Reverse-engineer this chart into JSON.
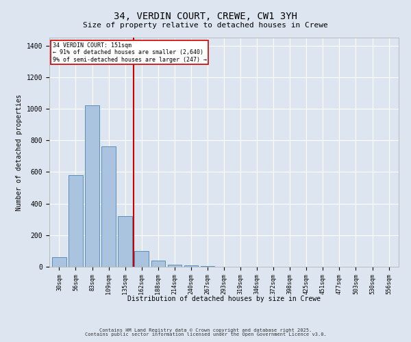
{
  "title_line1": "34, VERDIN COURT, CREWE, CW1 3YH",
  "title_line2": "Size of property relative to detached houses in Crewe",
  "xlabel": "Distribution of detached houses by size in Crewe",
  "ylabel": "Number of detached properties",
  "annotation_line1": "34 VERDIN COURT: 151sqm",
  "annotation_line2": "← 91% of detached houses are smaller (2,640)",
  "annotation_line3": "9% of semi-detached houses are larger (247) →",
  "footer_line1": "Contains HM Land Registry data © Crown copyright and database right 2025.",
  "footer_line2": "Contains public sector information licensed under the Open Government Licence v3.0.",
  "categories": [
    "30sqm",
    "56sqm",
    "83sqm",
    "109sqm",
    "135sqm",
    "162sqm",
    "188sqm",
    "214sqm",
    "240sqm",
    "267sqm",
    "293sqm",
    "319sqm",
    "346sqm",
    "372sqm",
    "398sqm",
    "425sqm",
    "451sqm",
    "477sqm",
    "503sqm",
    "530sqm",
    "556sqm"
  ],
  "values": [
    60,
    580,
    1020,
    760,
    320,
    100,
    40,
    15,
    8,
    4,
    2,
    1,
    1,
    0,
    0,
    0,
    0,
    0,
    0,
    0,
    0
  ],
  "bar_color": "#aac4e0",
  "bar_edge_color": "#5b8db8",
  "vline_x_idx": 4.5,
  "vline_color": "#cc0000",
  "ylim": [
    0,
    1450
  ],
  "background_color": "#dde6f0",
  "plot_background": "#dde6f0",
  "grid_color": "#ffffff",
  "title1_fontsize": 10,
  "title2_fontsize": 8,
  "ylabel_fontsize": 7,
  "xlabel_fontsize": 7,
  "tick_fontsize": 6,
  "annot_fontsize": 6,
  "footer_fontsize": 5
}
